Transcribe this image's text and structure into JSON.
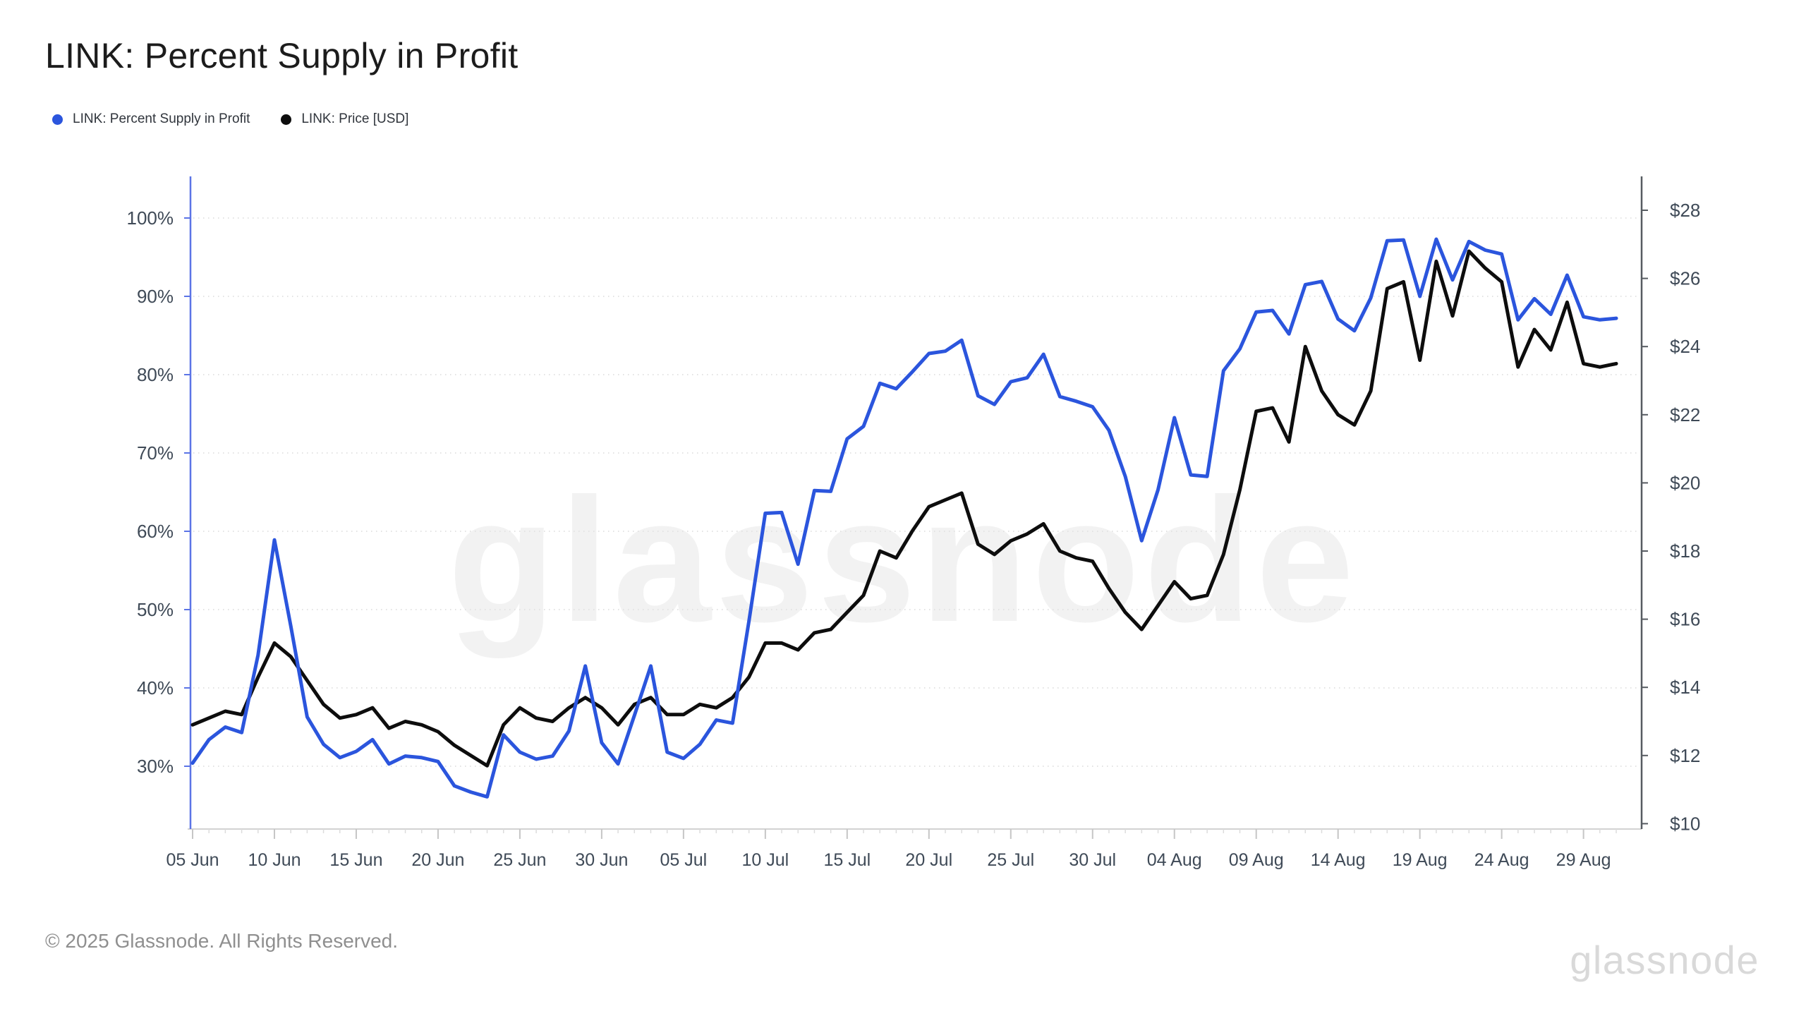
{
  "page": {
    "title": "LINK: Percent Supply in Profit"
  },
  "legend": {
    "items": [
      {
        "label": "LINK: Percent Supply in Profit",
        "color": "#2b55dd"
      },
      {
        "label": "LINK: Price [USD]",
        "color": "#0d0d0d"
      }
    ]
  },
  "watermark": "glassnode",
  "footer": {
    "copyright": "© 2025 Glassnode. All Rights Reserved.",
    "logo_text": "glassnode"
  },
  "chart_data": {
    "type": "line",
    "title": "LINK: Percent Supply in Profit",
    "grid": "horizontal-dotted",
    "legend_position": "top-left",
    "x": [
      "05 Jun",
      "06 Jun",
      "07 Jun",
      "08 Jun",
      "09 Jun",
      "10 Jun",
      "11 Jun",
      "12 Jun",
      "13 Jun",
      "14 Jun",
      "15 Jun",
      "16 Jun",
      "17 Jun",
      "18 Jun",
      "19 Jun",
      "20 Jun",
      "21 Jun",
      "22 Jun",
      "23 Jun",
      "24 Jun",
      "25 Jun",
      "26 Jun",
      "27 Jun",
      "28 Jun",
      "29 Jun",
      "30 Jun",
      "01 Jul",
      "02 Jul",
      "03 Jul",
      "04 Jul",
      "05 Jul",
      "06 Jul",
      "07 Jul",
      "08 Jul",
      "09 Jul",
      "10 Jul",
      "11 Jul",
      "12 Jul",
      "13 Jul",
      "14 Jul",
      "15 Jul",
      "16 Jul",
      "17 Jul",
      "18 Jul",
      "19 Jul",
      "20 Jul",
      "21 Jul",
      "22 Jul",
      "23 Jul",
      "24 Jul",
      "25 Jul",
      "26 Jul",
      "27 Jul",
      "28 Jul",
      "29 Jul",
      "30 Jul",
      "31 Jul",
      "01 Aug",
      "02 Aug",
      "03 Aug",
      "04 Aug",
      "05 Aug",
      "06 Aug",
      "07 Aug",
      "08 Aug",
      "09 Aug",
      "10 Aug",
      "11 Aug",
      "12 Aug",
      "13 Aug",
      "14 Aug",
      "15 Aug",
      "16 Aug",
      "17 Aug",
      "18 Aug",
      "19 Aug",
      "20 Aug",
      "21 Aug",
      "22 Aug",
      "23 Aug",
      "24 Aug",
      "25 Aug",
      "26 Aug",
      "27 Aug",
      "28 Aug",
      "29 Aug",
      "30 Aug",
      "31 Aug"
    ],
    "x_ticks": [
      {
        "label": "05 Jun",
        "index": 0
      },
      {
        "label": "10 Jun",
        "index": 5
      },
      {
        "label": "15 Jun",
        "index": 10
      },
      {
        "label": "20 Jun",
        "index": 15
      },
      {
        "label": "25 Jun",
        "index": 20
      },
      {
        "label": "30 Jun",
        "index": 25
      },
      {
        "label": "05 Jul",
        "index": 30
      },
      {
        "label": "10 Jul",
        "index": 35
      },
      {
        "label": "15 Jul",
        "index": 40
      },
      {
        "label": "20 Jul",
        "index": 45
      },
      {
        "label": "25 Jul",
        "index": 50
      },
      {
        "label": "30 Jul",
        "index": 55
      },
      {
        "label": "04 Aug",
        "index": 60
      },
      {
        "label": "09 Aug",
        "index": 65
      },
      {
        "label": "14 Aug",
        "index": 70
      },
      {
        "label": "19 Aug",
        "index": 75
      },
      {
        "label": "24 Aug",
        "index": 80
      },
      {
        "label": "29 Aug",
        "index": 85
      }
    ],
    "left_axis": {
      "unit": "%",
      "ticks": [
        {
          "label": "100%",
          "value": 100
        },
        {
          "label": "90%",
          "value": 90
        },
        {
          "label": "80%",
          "value": 80
        },
        {
          "label": "70%",
          "value": 70
        },
        {
          "label": "60%",
          "value": 60
        },
        {
          "label": "50%",
          "value": 50
        },
        {
          "label": "40%",
          "value": 40
        },
        {
          "label": "30%",
          "value": 30
        }
      ]
    },
    "right_axis": {
      "unit": "USD",
      "ticks": [
        {
          "label": "$28",
          "value": 28
        },
        {
          "label": "$26",
          "value": 26
        },
        {
          "label": "$24",
          "value": 24
        },
        {
          "label": "$22",
          "value": 22
        },
        {
          "label": "$20",
          "value": 20
        },
        {
          "label": "$18",
          "value": 18
        },
        {
          "label": "$16",
          "value": 16
        },
        {
          "label": "$14",
          "value": 14
        },
        {
          "label": "$12",
          "value": 12
        },
        {
          "label": "$10",
          "value": 10
        }
      ]
    },
    "series": [
      {
        "name": "LINK: Price [USD]",
        "axis": "right",
        "color": "#0d0d0d",
        "values": [
          12.9,
          13.1,
          13.3,
          13.2,
          14.3,
          15.3,
          14.9,
          14.2,
          13.5,
          13.1,
          13.2,
          13.4,
          12.8,
          13.0,
          12.9,
          12.7,
          12.3,
          12.0,
          11.7,
          12.9,
          13.4,
          13.1,
          13.0,
          13.4,
          13.7,
          13.4,
          12.9,
          13.5,
          13.7,
          13.2,
          13.2,
          13.5,
          13.4,
          13.7,
          14.3,
          15.3,
          15.3,
          15.1,
          15.6,
          15.7,
          16.2,
          16.7,
          18.0,
          17.8,
          18.6,
          19.3,
          19.5,
          19.7,
          18.2,
          17.9,
          18.3,
          18.5,
          18.8,
          18.0,
          17.8,
          17.7,
          16.9,
          16.2,
          15.7,
          16.4,
          17.1,
          16.6,
          16.7,
          17.9,
          19.8,
          22.1,
          22.2,
          21.2,
          24.0,
          22.7,
          22.0,
          21.7,
          22.7,
          25.7,
          25.9,
          23.6,
          26.5,
          24.9,
          26.8,
          26.3,
          25.9,
          23.4,
          24.5,
          23.9,
          25.3,
          23.5,
          23.4,
          23.5
        ]
      },
      {
        "name": "LINK: Percent Supply in Profit",
        "axis": "left",
        "color": "#2b55dd",
        "values": [
          30.4,
          33.4,
          35.0,
          34.3,
          44.2,
          58.9,
          47.9,
          36.3,
          32.8,
          31.1,
          31.9,
          33.4,
          30.3,
          31.3,
          31.1,
          30.6,
          27.5,
          26.7,
          26.1,
          34.0,
          31.8,
          30.9,
          31.3,
          34.5,
          42.8,
          33.0,
          30.3,
          36.5,
          42.8,
          31.8,
          31.0,
          32.8,
          35.9,
          35.5,
          48.5,
          62.3,
          62.4,
          55.8,
          65.2,
          65.1,
          71.8,
          73.4,
          78.9,
          78.2,
          80.4,
          82.7,
          83.0,
          84.4,
          77.3,
          76.2,
          79.1,
          79.6,
          82.6,
          77.2,
          76.6,
          75.9,
          72.9,
          67.0,
          58.8,
          65.3,
          74.5,
          67.2,
          67.0,
          80.5,
          83.3,
          88.0,
          88.2,
          85.2,
          91.5,
          91.9,
          87.1,
          85.6,
          89.8,
          97.1,
          97.2,
          90.0,
          97.3,
          92.1,
          97.0,
          95.9,
          95.4,
          87.0,
          89.7,
          87.7,
          92.7,
          87.4,
          87.0,
          87.2
        ]
      }
    ],
    "style": {
      "grid_color": "#e3e3e3",
      "left_axis_line_color": "#5b74e6",
      "right_axis_line_color": "#565b61",
      "x_axis_line_color": "#d2d2d2",
      "tick_label_color": "#3f4a57",
      "watermark_color": "#000000",
      "background": "#ffffff"
    }
  }
}
